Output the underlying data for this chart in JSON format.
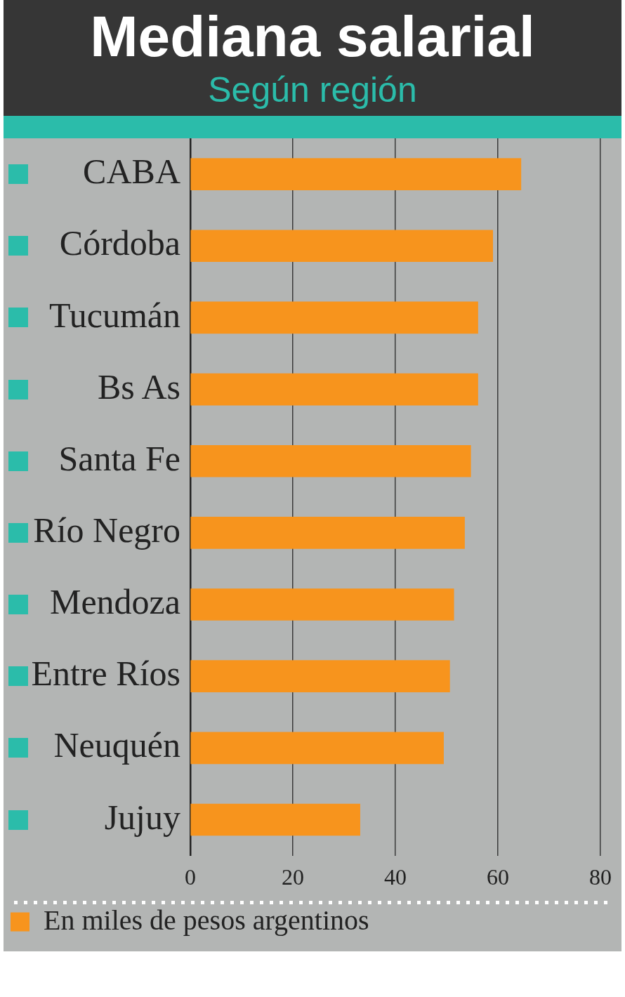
{
  "chart_data": {
    "type": "bar",
    "orientation": "horizontal",
    "title": "Mediana salarial",
    "subtitle": "Según región",
    "categories": [
      "CABA",
      "Córdoba",
      "Tucumán",
      "Bs As",
      "Santa Fe",
      "Río Negro",
      "Mendoza",
      "Entre Ríos",
      "Neuquén",
      "Jujuy"
    ],
    "series": [
      {
        "name": "En miles de pesos argentinos",
        "color": "#f7941d",
        "values": [
          64.5,
          59.0,
          56.1,
          56.1,
          54.7,
          53.5,
          51.4,
          50.6,
          49.4,
          33.1
        ]
      }
    ],
    "xlim": [
      0,
      80
    ],
    "xticks": [
      0,
      20,
      40,
      60,
      80
    ],
    "grid": "x",
    "legend": "bottom left"
  }
}
